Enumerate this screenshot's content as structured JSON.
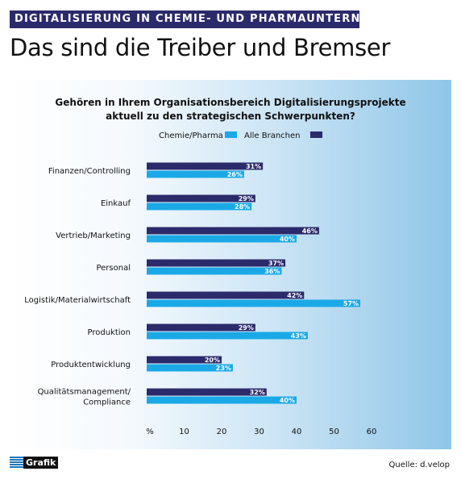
{
  "header": {
    "kicker": "DIGITALISIERUNG IN CHEMIE- UND PHARMAUNTERNEHMEN",
    "headline": "Das sind die Treiber und Bremser"
  },
  "footer": {
    "logo_text": "Grafik",
    "source": "Quelle: d.velop"
  },
  "colors": {
    "chemie_pharma": "#1aa9e6",
    "alle_branchen": "#2b2a6b",
    "kicker_bg": "#2b2a6b"
  },
  "chart_data": {
    "type": "bar",
    "orientation": "horizontal",
    "title": "Gehören in Ihrem Organisationsbereich Digitalisierungsprojekte aktuell zu den strategischen Schwerpunkten?",
    "title_lines": [
      "Gehören in Ihrem Organisationsbereich Digitalisierungsprojekte",
      "aktuell zu den strategischen Schwerpunkten?"
    ],
    "categories": [
      [
        "Finanzen/Controlling"
      ],
      [
        "Einkauf"
      ],
      [
        "Vertrieb/Marketing"
      ],
      [
        "Personal"
      ],
      [
        "Logistik/Materialwirtschaft"
      ],
      [
        "Produktion"
      ],
      [
        "Produktentwicklung"
      ],
      [
        "Qualitätsmanagement/",
        "Compliance"
      ]
    ],
    "series": [
      {
        "name": "Alle Branchen",
        "color": "#2b2a6b",
        "values": [
          31,
          29,
          46,
          37,
          42,
          29,
          20,
          32
        ]
      },
      {
        "name": "Chemie/Pharma",
        "color": "#1aa9e6",
        "values": [
          26,
          28,
          40,
          36,
          57,
          43,
          23,
          40
        ]
      }
    ],
    "legend": [
      {
        "name": "Chemie/Pharma",
        "color": "#1aa9e6"
      },
      {
        "name": "Alle Branchen",
        "color": "#2b2a6b"
      }
    ],
    "legend_position": "top-center",
    "x_unit_label": "%",
    "x_ticks": [
      10,
      20,
      30,
      40,
      50,
      60
    ],
    "xlim": [
      0,
      60
    ],
    "value_suffix": "%",
    "grid": false
  }
}
